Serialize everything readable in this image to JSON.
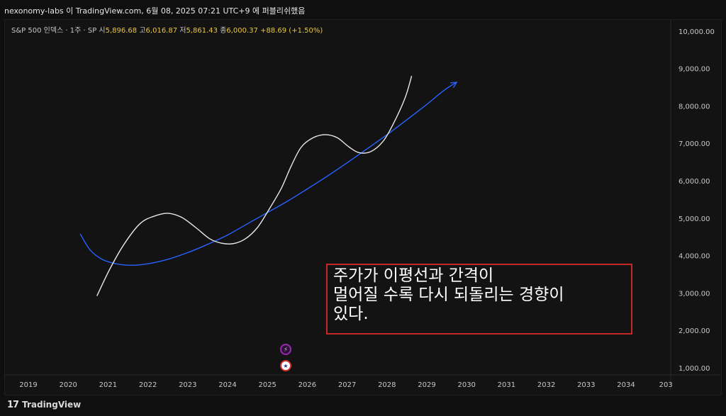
{
  "window": {
    "publish_note": "nexonomy-labs 이 TradingView.com, 6월 08, 2025 07:21 UTC+9 에 퍼블리쉬했음"
  },
  "legend": {
    "symbol": "S&P 500 인덱스 · 1주 · SP",
    "open_label": "시",
    "open_value": "5,896.68",
    "high_label": "고",
    "high_value": "6,016.87",
    "low_label": "저",
    "low_value": "5,861.43",
    "close_label": "종",
    "close_value": "6,000.37",
    "change": "+88.69 (+1.50%)"
  },
  "annotation": {
    "line1": "주가가 이평선과 간격이",
    "line2": "멀어질 수록 다시 되돌리는 경향이",
    "line3": "있다."
  },
  "footer": {
    "brand": "TradingView",
    "brand_mark": "17"
  },
  "colors": {
    "background": "#131313",
    "price_curve": "#e8e8e8",
    "moving_average": "#2962ff",
    "annotation_border": "#c62828",
    "legend_values": "#e9c642"
  },
  "icons": {
    "event_badge_1": "lightning-icon",
    "event_badge_2": "us-flag-icon"
  },
  "chart_data": {
    "type": "line",
    "x_ticks": [
      "2019",
      "2020",
      "2021",
      "2022",
      "2023",
      "2024",
      "2025",
      "2026",
      "2027",
      "2028",
      "2029",
      "2030",
      "2031",
      "2032",
      "2033",
      "2034",
      "203"
    ],
    "y_ticks": [
      "10,000.00",
      "9,000.00",
      "8,000.00",
      "7,000.00",
      "6,000.00",
      "5,000.00",
      "4,000.00",
      "3,000.00",
      "2,000.00",
      "1,000.00"
    ],
    "xlim": [
      2018.65,
      2035.0
    ],
    "ylim": [
      600,
      10400
    ],
    "series": [
      {
        "role": "price (hand-drawn)",
        "color": "#e8e8e8",
        "points": [
          [
            2020.72,
            2920
          ],
          [
            2021.05,
            3650
          ],
          [
            2021.4,
            4300
          ],
          [
            2021.8,
            4850
          ],
          [
            2022.15,
            5050
          ],
          [
            2022.5,
            5130
          ],
          [
            2022.85,
            5020
          ],
          [
            2023.2,
            4750
          ],
          [
            2023.55,
            4450
          ],
          [
            2023.85,
            4330
          ],
          [
            2024.15,
            4320
          ],
          [
            2024.45,
            4450
          ],
          [
            2024.75,
            4750
          ],
          [
            2025.05,
            5250
          ],
          [
            2025.35,
            5800
          ],
          [
            2025.6,
            6400
          ],
          [
            2025.85,
            6900
          ],
          [
            2026.15,
            7150
          ],
          [
            2026.45,
            7230
          ],
          [
            2026.75,
            7150
          ],
          [
            2027.05,
            6900
          ],
          [
            2027.3,
            6750
          ],
          [
            2027.6,
            6780
          ],
          [
            2027.9,
            7050
          ],
          [
            2028.15,
            7500
          ],
          [
            2028.45,
            8200
          ],
          [
            2028.62,
            8800
          ]
        ]
      },
      {
        "role": "moving average",
        "color": "#2962ff",
        "points": [
          [
            2020.3,
            4580
          ],
          [
            2020.55,
            4150
          ],
          [
            2020.85,
            3900
          ],
          [
            2021.2,
            3780
          ],
          [
            2021.6,
            3740
          ],
          [
            2022.0,
            3780
          ],
          [
            2022.5,
            3900
          ],
          [
            2023.0,
            4080
          ],
          [
            2023.5,
            4300
          ],
          [
            2024.0,
            4550
          ],
          [
            2024.5,
            4850
          ],
          [
            2025.0,
            5150
          ],
          [
            2025.5,
            5450
          ],
          [
            2026.0,
            5780
          ],
          [
            2026.5,
            6120
          ],
          [
            2027.0,
            6480
          ],
          [
            2027.5,
            6850
          ],
          [
            2028.0,
            7230
          ],
          [
            2028.5,
            7630
          ],
          [
            2029.0,
            8040
          ],
          [
            2029.45,
            8430
          ],
          [
            2029.75,
            8630
          ]
        ]
      }
    ]
  }
}
